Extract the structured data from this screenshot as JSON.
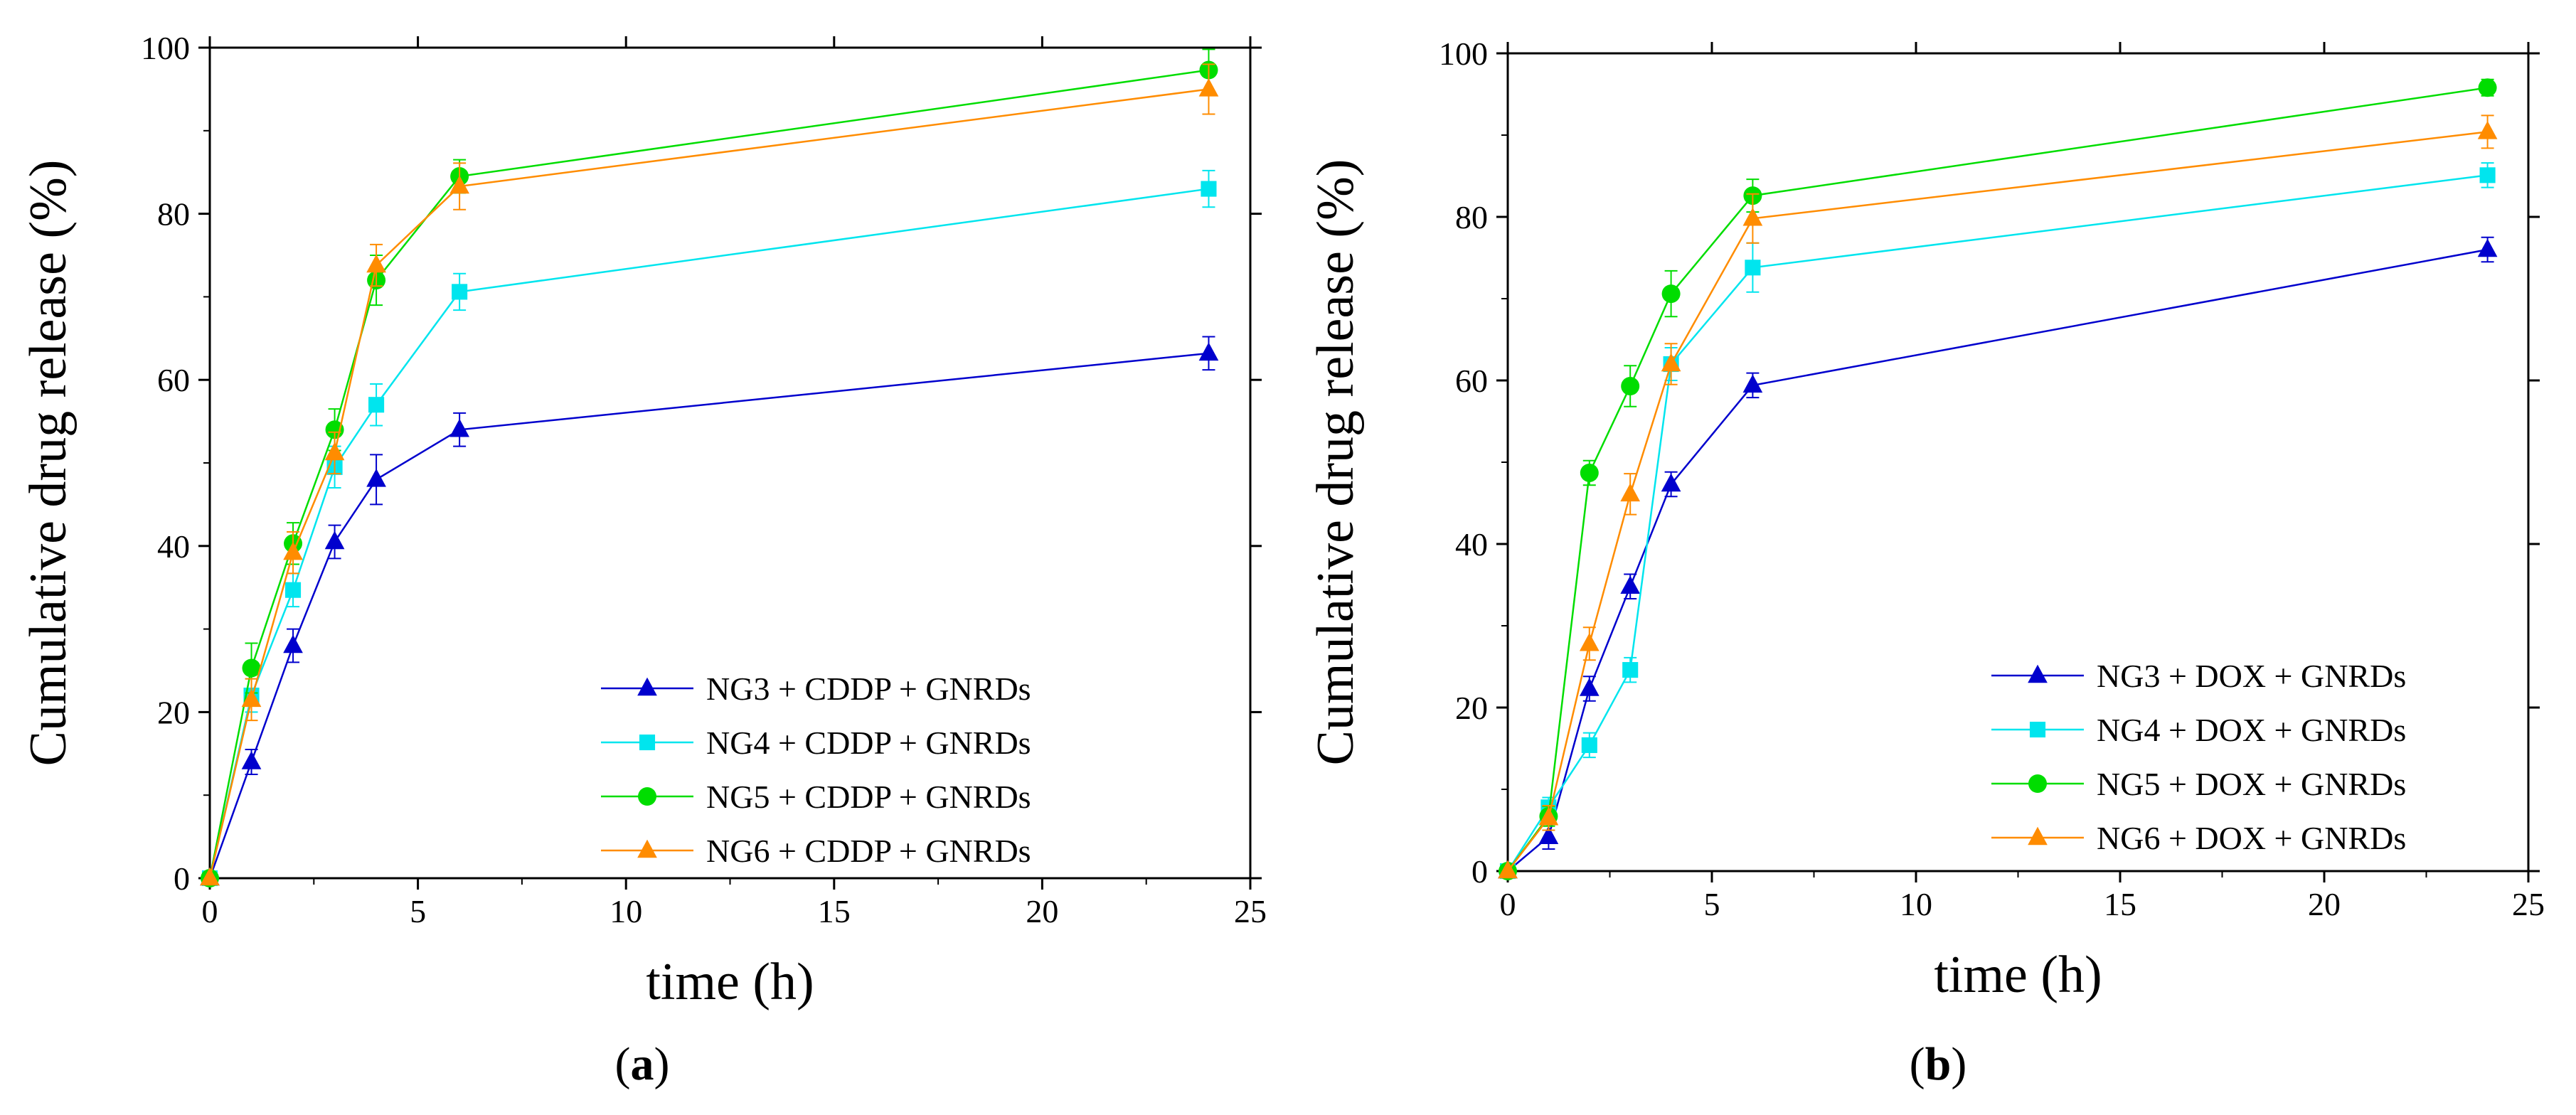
{
  "chart_data": [
    {
      "type": "line",
      "panel": "(a)",
      "panel_letter": "a",
      "xlabel": "time (h)",
      "ylabel": "Cumulative drug release (%)",
      "xlim": [
        0,
        25
      ],
      "ylim": [
        0,
        100
      ],
      "xticks": [
        "0",
        "5",
        "10",
        "15",
        "20",
        "25"
      ],
      "yticks": [
        "0",
        "20",
        "40",
        "60",
        "80",
        "100"
      ],
      "x": [
        0,
        1,
        2,
        3,
        4,
        6,
        24
      ],
      "legend_position": "bottom-right",
      "series": [
        {
          "name": "NG3 + CDDP + GNRDs",
          "color": "#0000CD",
          "marker": "triangle",
          "values": [
            0,
            14,
            28,
            40.5,
            48,
            54,
            63.2
          ],
          "errors": [
            0,
            1.5,
            2,
            2,
            3,
            2,
            2
          ]
        },
        {
          "name": "NG4 + CDDP + GNRDs",
          "color": "#00E5EE",
          "marker": "square",
          "values": [
            0,
            22,
            34.7,
            49.5,
            57,
            70.6,
            83
          ],
          "errors": [
            0,
            2,
            2,
            2.5,
            2.5,
            2.2,
            2.2
          ]
        },
        {
          "name": "NG5 + CDDP + GNRDs",
          "color": "#00DD00",
          "marker": "circle",
          "values": [
            0,
            25.3,
            40.3,
            54,
            72,
            84.5,
            97.3
          ],
          "errors": [
            0,
            3,
            2.5,
            2.5,
            3,
            2,
            2.5
          ]
        },
        {
          "name": "NG6 + CDDP + GNRDs",
          "color": "#FF8C00",
          "marker": "triangle",
          "values": [
            0,
            21.5,
            39.2,
            51.2,
            73.8,
            83.3,
            95
          ],
          "errors": [
            0,
            2.5,
            2.5,
            2.5,
            2.5,
            2.8,
            3
          ]
        }
      ]
    },
    {
      "type": "line",
      "panel": "(b)",
      "panel_letter": "b",
      "xlabel": "time (h)",
      "ylabel": "Cumulative drug release (%)",
      "xlim": [
        0,
        25
      ],
      "ylim": [
        0,
        100
      ],
      "xticks": [
        "0",
        "5",
        "10",
        "15",
        "20",
        "25"
      ],
      "yticks": [
        "0",
        "20",
        "40",
        "60",
        "80",
        "100"
      ],
      "x": [
        0,
        1,
        2,
        3,
        4,
        6,
        24
      ],
      "legend_position": "bottom-right",
      "series": [
        {
          "name": "NG3 + DOX + GNRDs",
          "color": "#0000CD",
          "marker": "triangle",
          "values": [
            0,
            4.2,
            22.3,
            34.8,
            47.3,
            59.4,
            76
          ],
          "errors": [
            0,
            1.5,
            1.5,
            1.5,
            1.5,
            1.5,
            1.5
          ]
        },
        {
          "name": "NG4 + DOX + GNRDs",
          "color": "#00E5EE",
          "marker": "square",
          "values": [
            0,
            7.8,
            15.4,
            24.6,
            62,
            73.8,
            85.1
          ],
          "errors": [
            0,
            1.2,
            1.5,
            1.5,
            2,
            3,
            1.5
          ]
        },
        {
          "name": "NG5 + DOX + GNRDs",
          "color": "#00DD00",
          "marker": "circle",
          "values": [
            0,
            6.7,
            48.7,
            59.3,
            70.6,
            82.6,
            95.8
          ],
          "errors": [
            0,
            1.2,
            1.5,
            2.5,
            2.8,
            2,
            1
          ]
        },
        {
          "name": "NG6 + DOX + GNRDs",
          "color": "#FF8C00",
          "marker": "triangle",
          "values": [
            0,
            6.5,
            27.8,
            46.1,
            62,
            79.8,
            90.4
          ],
          "errors": [
            0,
            1.5,
            2,
            2.5,
            2.5,
            3,
            2
          ]
        }
      ]
    }
  ]
}
